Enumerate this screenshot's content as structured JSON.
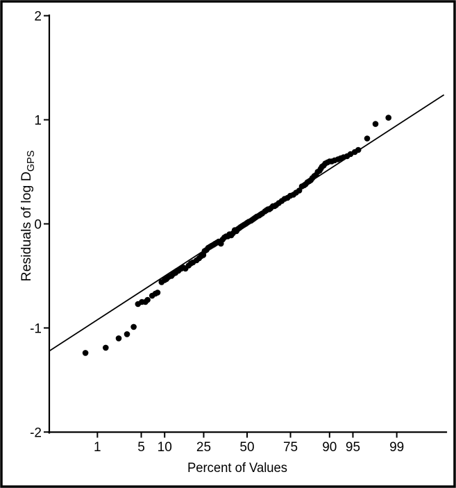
{
  "figure": {
    "xlabel": "Percent of Values",
    "ylabel_main": "Residuals of log D",
    "ylabel_sub": "GPS"
  },
  "chart_data": {
    "type": "scatter",
    "title": "",
    "xlabel": "Percent of Values",
    "ylabel": "Residuals of log D_GPS (GPS is subscript)",
    "x_scale": "probit-percent (normal probability axis)",
    "x_ticks_percent": [
      1,
      5,
      10,
      25,
      50,
      75,
      90,
      95,
      99
    ],
    "y_ticks": [
      2,
      1,
      0,
      -1,
      -2
    ],
    "ylim": [
      -2,
      2
    ],
    "grid": false,
    "legend": null,
    "marker": {
      "shape": "circle",
      "color": "#000000",
      "radius_px": 4.3
    },
    "fit_line": {
      "color": "#000000",
      "z1": -3.07,
      "y1": -1.22,
      "z2": 3.06,
      "y2": 1.24,
      "equation_approx": "residual = 0.40 * z"
    },
    "points_percent_residual": [
      [
        0.6,
        -1.24
      ],
      [
        1.4,
        -1.19
      ],
      [
        2.3,
        -1.1
      ],
      [
        3.1,
        -1.06
      ],
      [
        3.9,
        -0.99
      ],
      [
        4.5,
        -0.77
      ],
      [
        5.1,
        -0.75
      ],
      [
        5.7,
        -0.75
      ],
      [
        6.1,
        -0.73
      ],
      [
        7.0,
        -0.69
      ],
      [
        7.7,
        -0.67
      ],
      [
        8.2,
        -0.66
      ],
      [
        9.2,
        -0.56
      ],
      [
        10.0,
        -0.54
      ],
      [
        10.5,
        -0.53
      ],
      [
        11.1,
        -0.51
      ],
      [
        12.0,
        -0.5
      ],
      [
        12.6,
        -0.48
      ],
      [
        13.3,
        -0.47
      ],
      [
        14.3,
        -0.45
      ],
      [
        15.3,
        -0.43
      ],
      [
        16.1,
        -0.42
      ],
      [
        16.9,
        -0.43
      ],
      [
        18.2,
        -0.4
      ],
      [
        19.1,
        -0.38
      ],
      [
        20.0,
        -0.37
      ],
      [
        21.6,
        -0.35
      ],
      [
        22.8,
        -0.33
      ],
      [
        23.8,
        -0.31
      ],
      [
        24.8,
        -0.3
      ],
      [
        25.5,
        -0.26
      ],
      [
        26.4,
        -0.25
      ],
      [
        27.3,
        -0.23
      ],
      [
        28.2,
        -0.22
      ],
      [
        29.1,
        -0.21
      ],
      [
        30.1,
        -0.2
      ],
      [
        31.0,
        -0.19
      ],
      [
        32.0,
        -0.18
      ],
      [
        32.9,
        -0.17
      ],
      [
        34.2,
        -0.19
      ],
      [
        35.2,
        -0.15
      ],
      [
        36.2,
        -0.13
      ],
      [
        37.2,
        -0.12
      ],
      [
        38.2,
        -0.12
      ],
      [
        39.2,
        -0.1
      ],
      [
        40.3,
        -0.11
      ],
      [
        41.3,
        -0.09
      ],
      [
        42.4,
        -0.06
      ],
      [
        43.4,
        -0.07
      ],
      [
        44.3,
        -0.05
      ],
      [
        45.2,
        -0.04
      ],
      [
        46.0,
        -0.03
      ],
      [
        47.0,
        -0.02
      ],
      [
        48.0,
        -0.01
      ],
      [
        49.1,
        0.0
      ],
      [
        50.0,
        0.01
      ],
      [
        51.0,
        0.02
      ],
      [
        52.4,
        0.03
      ],
      [
        53.3,
        0.04
      ],
      [
        54.2,
        0.05
      ],
      [
        55.1,
        0.06
      ],
      [
        56.0,
        0.07
      ],
      [
        57.4,
        0.08
      ],
      [
        58.3,
        0.09
      ],
      [
        59.3,
        0.1
      ],
      [
        60.9,
        0.12
      ],
      [
        61.8,
        0.13
      ],
      [
        62.7,
        0.14
      ],
      [
        63.5,
        0.14
      ],
      [
        64.3,
        0.15
      ],
      [
        65.6,
        0.17
      ],
      [
        66.5,
        0.17
      ],
      [
        67.4,
        0.18
      ],
      [
        68.9,
        0.2
      ],
      [
        70.5,
        0.22
      ],
      [
        72.0,
        0.24
      ],
      [
        73.5,
        0.25
      ],
      [
        74.9,
        0.27
      ],
      [
        76.4,
        0.28
      ],
      [
        77.7,
        0.3
      ],
      [
        79.1,
        0.32
      ],
      [
        80.3,
        0.36
      ],
      [
        81.2,
        0.37
      ],
      [
        81.8,
        0.38
      ],
      [
        82.6,
        0.4
      ],
      [
        83.3,
        0.41
      ],
      [
        83.9,
        0.42
      ],
      [
        84.5,
        0.44
      ],
      [
        85.2,
        0.46
      ],
      [
        85.8,
        0.47
      ],
      [
        86.4,
        0.5
      ],
      [
        87.0,
        0.51
      ],
      [
        87.4,
        0.53
      ],
      [
        87.8,
        0.55
      ],
      [
        88.3,
        0.56
      ],
      [
        88.8,
        0.58
      ],
      [
        89.4,
        0.59
      ],
      [
        90.0,
        0.6
      ],
      [
        90.6,
        0.6
      ],
      [
        91.3,
        0.61
      ],
      [
        92.1,
        0.62
      ],
      [
        92.7,
        0.63
      ],
      [
        93.3,
        0.64
      ],
      [
        94.0,
        0.65
      ],
      [
        94.6,
        0.67
      ],
      [
        95.3,
        0.69
      ],
      [
        95.8,
        0.71
      ],
      [
        96.9,
        0.82
      ],
      [
        97.7,
        0.96
      ],
      [
        98.6,
        1.02
      ]
    ]
  }
}
